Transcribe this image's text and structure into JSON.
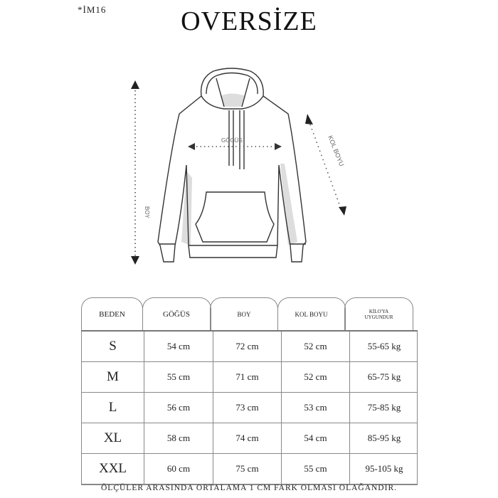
{
  "product_code": "*İM16",
  "title": "OVERSİZE",
  "diagram": {
    "labels": {
      "chest": "GÖGÜS",
      "length": "BOY",
      "sleeve": "KOL BOYU"
    },
    "icons": [
      "hoodie-illustration",
      "arrow-up-icon",
      "arrow-down-icon",
      "arrow-left-icon",
      "arrow-right-icon"
    ]
  },
  "table": {
    "headers": [
      "BEDEN",
      "GÖĞÜS",
      "BOY",
      "KOL BOYU",
      "KİLO'YA UYGUNDUR"
    ],
    "rows": [
      [
        "S",
        "54 cm",
        "72 cm",
        "52  cm",
        "55-65 kg"
      ],
      [
        "M",
        "55 cm",
        "71 cm",
        "52 cm",
        "65-75 kg"
      ],
      [
        "L",
        "56 cm",
        "73 cm",
        "53 cm",
        "75-85 kg"
      ],
      [
        "XL",
        "58 cm",
        "74 cm",
        "54 cm",
        "85-95 kg"
      ],
      [
        "XXL",
        "60 cm",
        "75 cm",
        "55 cm",
        "95-105 kg"
      ]
    ]
  },
  "note": "ÖLÇÜLER ARASINDA ORTALAMA 1 CM FARK OLMASI OLAĞANDIR."
}
